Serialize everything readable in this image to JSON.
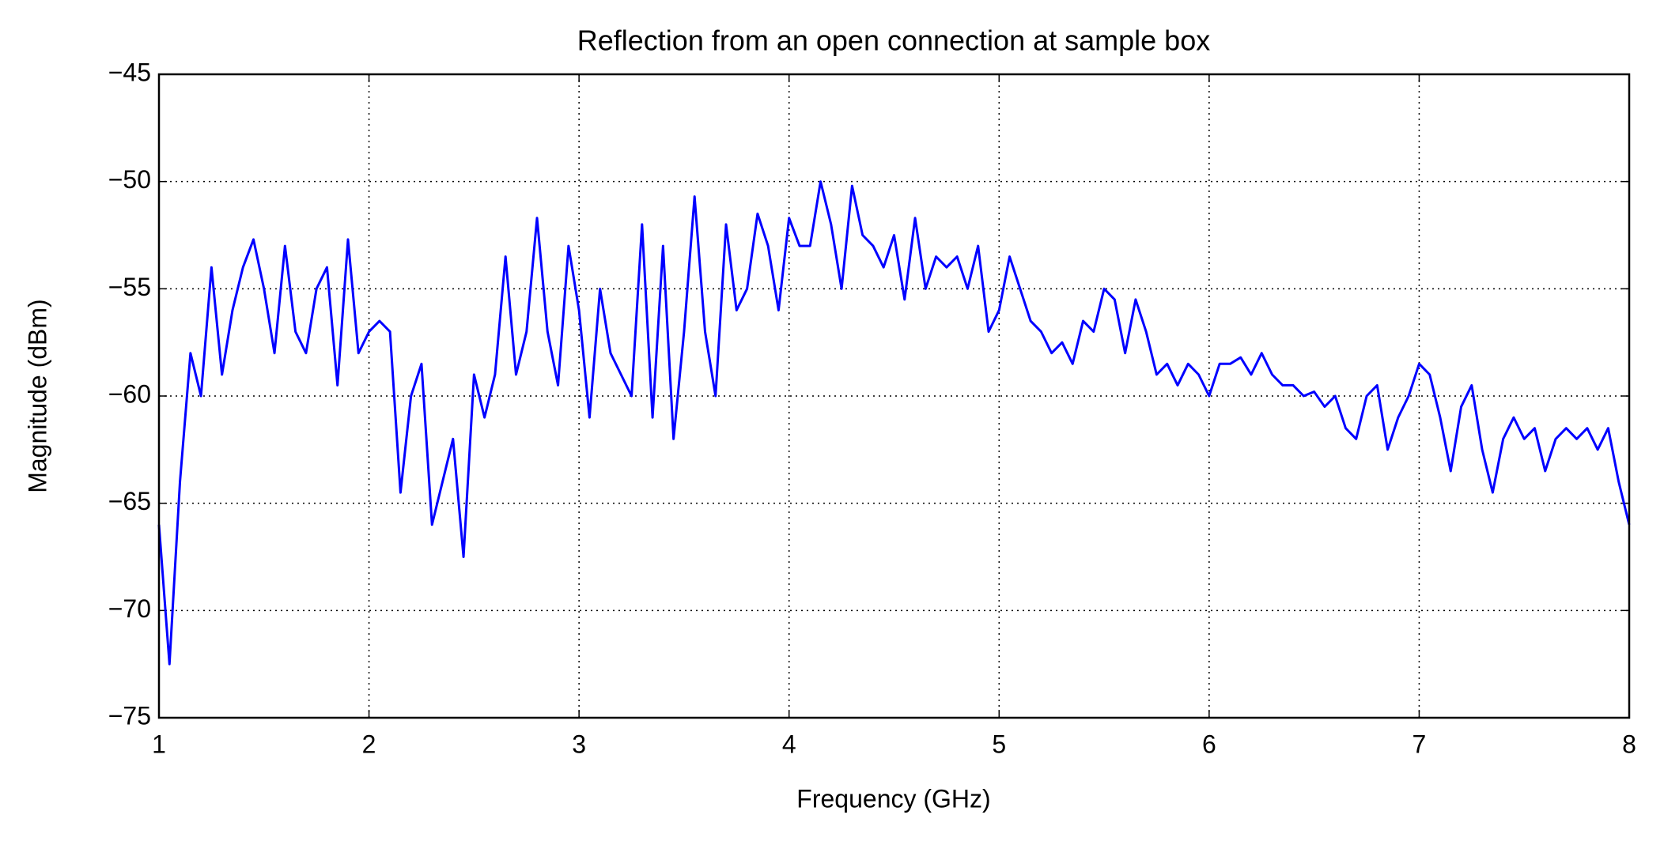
{
  "chart_data": {
    "type": "line",
    "title": "Reflection from an open connection at sample box",
    "x_label": "Frequency (GHz)",
    "y_label": "Magnitude (dBm)",
    "color": "#0000ff",
    "grid": true,
    "xlim": [
      1,
      8
    ],
    "ylim": [
      -75,
      -45
    ],
    "xticks": [
      1,
      2,
      3,
      4,
      5,
      6,
      7,
      8
    ],
    "yticks": [
      {
        "value": -75,
        "label": "−75"
      },
      {
        "value": -70,
        "label": "−70"
      },
      {
        "value": -65,
        "label": "−65"
      },
      {
        "value": -60,
        "label": "−60"
      },
      {
        "value": -55,
        "label": "−55"
      },
      {
        "value": -50,
        "label": "−50"
      },
      {
        "value": -45,
        "label": "−45"
      }
    ],
    "x": [
      1.0,
      1.05,
      1.1,
      1.15,
      1.2,
      1.25,
      1.3,
      1.35,
      1.4,
      1.45,
      1.5,
      1.55,
      1.6,
      1.65,
      1.7,
      1.75,
      1.8,
      1.85,
      1.9,
      1.95,
      2.0,
      2.05,
      2.1,
      2.15,
      2.2,
      2.25,
      2.3,
      2.35,
      2.4,
      2.45,
      2.5,
      2.55,
      2.6,
      2.65,
      2.7,
      2.75,
      2.8,
      2.85,
      2.9,
      2.95,
      3.0,
      3.05,
      3.1,
      3.15,
      3.2,
      3.25,
      3.3,
      3.35,
      3.4,
      3.45,
      3.5,
      3.55,
      3.6,
      3.65,
      3.7,
      3.75,
      3.8,
      3.85,
      3.9,
      3.95,
      4.0,
      4.05,
      4.1,
      4.15,
      4.2,
      4.25,
      4.3,
      4.35,
      4.4,
      4.45,
      4.5,
      4.55,
      4.6,
      4.65,
      4.7,
      4.75,
      4.8,
      4.85,
      4.9,
      4.95,
      5.0,
      5.05,
      5.1,
      5.15,
      5.2,
      5.25,
      5.3,
      5.35,
      5.4,
      5.45,
      5.5,
      5.55,
      5.6,
      5.65,
      5.7,
      5.75,
      5.8,
      5.85,
      5.9,
      5.95,
      6.0,
      6.05,
      6.1,
      6.15,
      6.2,
      6.25,
      6.3,
      6.35,
      6.4,
      6.45,
      6.5,
      6.55,
      6.6,
      6.65,
      6.7,
      6.75,
      6.8,
      6.85,
      6.9,
      6.95,
      7.0,
      7.05,
      7.1,
      7.15,
      7.2,
      7.25,
      7.3,
      7.35,
      7.4,
      7.45,
      7.5,
      7.55,
      7.6,
      7.65,
      7.7,
      7.75,
      7.8,
      7.85,
      7.9,
      7.95,
      8.0
    ],
    "values": [
      -66,
      -72.5,
      -64,
      -58,
      -60,
      -54,
      -59,
      -56,
      -54,
      -52.7,
      -55,
      -58,
      -53,
      -57,
      -58,
      -55,
      -54,
      -59.5,
      -52.7,
      -58,
      -57,
      -56.5,
      -57,
      -64.5,
      -60,
      -58.5,
      -66,
      -64,
      -62,
      -67.5,
      -59,
      -61,
      -59,
      -53.5,
      -59,
      -57,
      -51.7,
      -57,
      -59.5,
      -53,
      -56,
      -61,
      -55,
      -58,
      -59,
      -60,
      -52,
      -61,
      -53,
      -62,
      -57,
      -50.7,
      -57,
      -60,
      -52,
      -56,
      -55,
      -51.5,
      -53,
      -56,
      -51.7,
      -53,
      -53,
      -50,
      -52,
      -55,
      -50.2,
      -52.5,
      -53,
      -54,
      -52.5,
      -55.5,
      -51.7,
      -55,
      -53.5,
      -54,
      -53.5,
      -55,
      -53,
      -57,
      -56,
      -53.5,
      -55,
      -56.5,
      -57,
      -58,
      -57.5,
      -58.5,
      -56.5,
      -57,
      -55,
      -55.5,
      -58,
      -55.5,
      -57,
      -59,
      -58.5,
      -59.5,
      -58.5,
      -59,
      -60,
      -58.5,
      -58.5,
      -58.2,
      -59,
      -58,
      -59,
      -59.5,
      -59.5,
      -60,
      -59.8,
      -60.5,
      -60,
      -61.5,
      -62,
      -60,
      -59.5,
      -62.5,
      -61,
      -60,
      -58.5,
      -59,
      -61,
      -63.5,
      -60.5,
      -59.5,
      -62.5,
      -64.5,
      -62,
      -61,
      -62,
      -61.5,
      -63.5,
      -62,
      -61.5,
      -62,
      -61.5,
      -62.5,
      -61.5,
      -64,
      -66
    ]
  }
}
